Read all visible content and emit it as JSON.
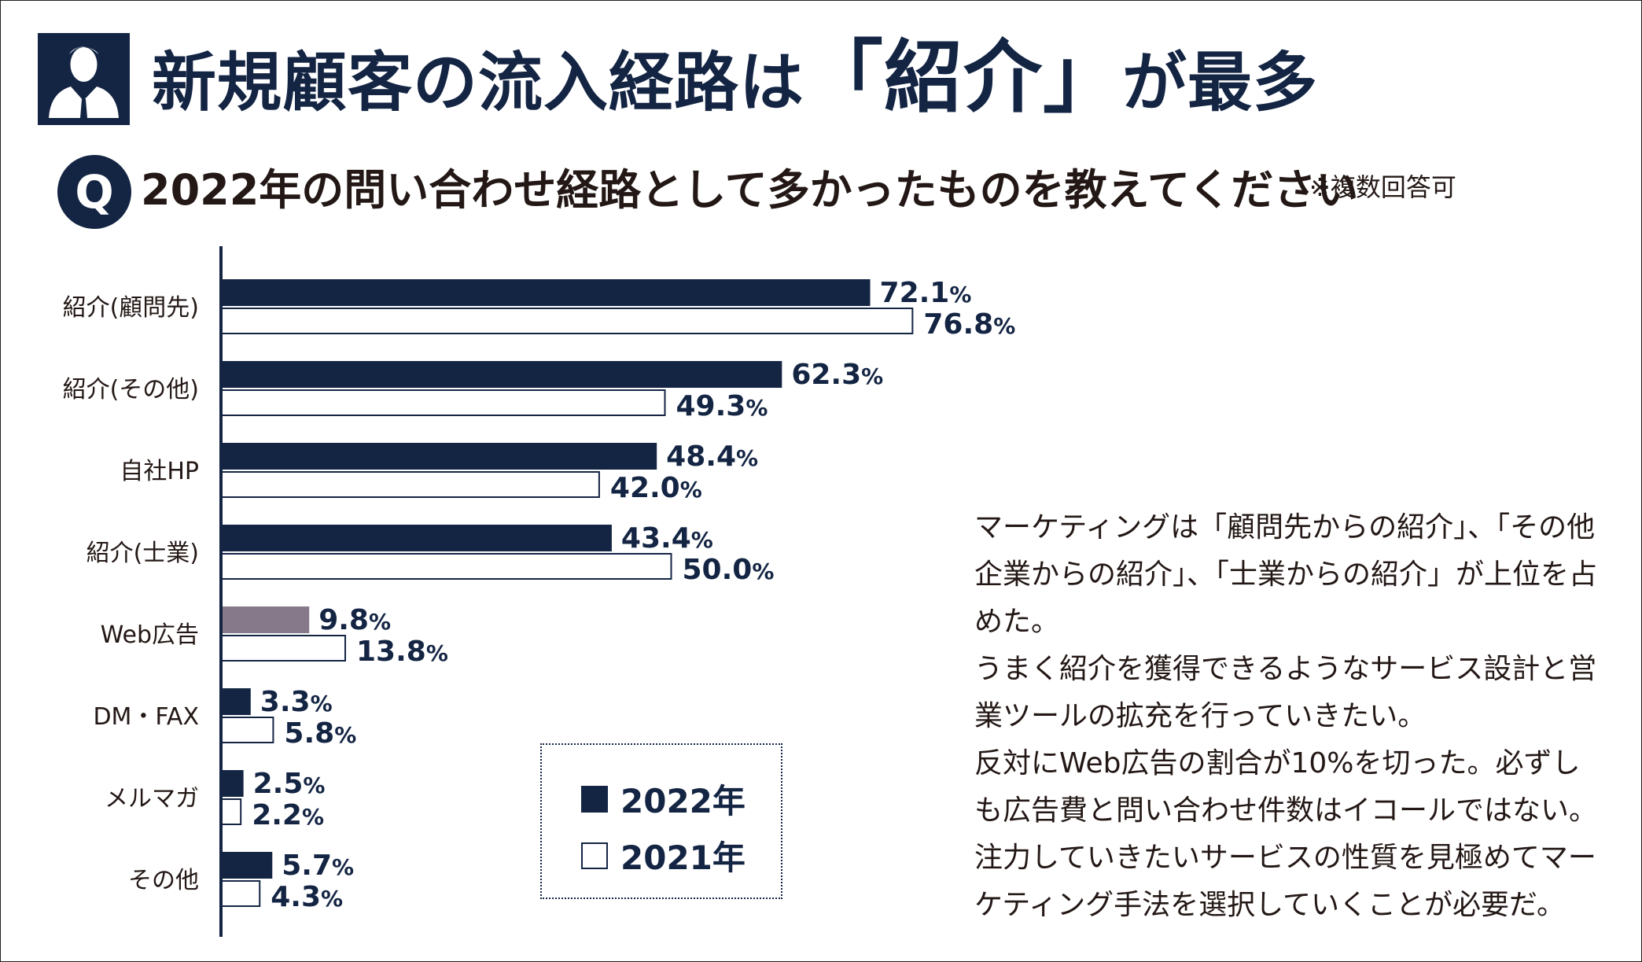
{
  "header": {
    "icon": "businessman-icon",
    "title_part1": "新規顧客の流入経路は",
    "title_part2": "「紹介」",
    "title_part3": "が最多"
  },
  "question": {
    "badge": "Q",
    "text": "2022年の問い合わせ経路として多かったものを教えてください",
    "note": "※複数回答可"
  },
  "legend": {
    "series_2022": "2022年",
    "series_2021": "2021年"
  },
  "colors": {
    "navy": "#142544",
    "highlight": "#86798a",
    "white": "#ffffff"
  },
  "chart_data": {
    "type": "bar",
    "orientation": "horizontal",
    "categories": [
      "紹介(顧問先)",
      "紹介(その他)",
      "自社HP",
      "紹介(士業)",
      "Web広告",
      "DM・FAX",
      "メルマガ",
      "その他"
    ],
    "series": [
      {
        "name": "2022年",
        "values": [
          72.1,
          62.3,
          48.4,
          43.4,
          9.8,
          3.3,
          2.5,
          5.7
        ],
        "highlight_index": 4
      },
      {
        "name": "2021年",
        "values": [
          76.8,
          49.3,
          42.0,
          50.0,
          13.8,
          5.8,
          2.2,
          4.3
        ]
      }
    ],
    "labels": {
      "2022年": [
        "72.1",
        "62.3",
        "48.4",
        "43.4",
        "9.8",
        "3.3",
        "2.5",
        "5.7"
      ],
      "2021年": [
        "76.8",
        "49.3",
        "42.0",
        "50.0",
        "13.8",
        "5.8",
        "2.2",
        "4.3"
      ]
    },
    "unit": "%",
    "xlim": [
      0,
      100
    ],
    "grid": false,
    "legend_position": "bottom-center"
  },
  "commentary": [
    "マーケティングは「顧問先からの紹介」、「その他企業からの紹介」、「士業からの紹介」が上位を占めた。",
    "うまく紹介を獲得できるようなサービス設計と営業ツールの拡充を行っていきたい。",
    "反対にWeb広告の割合が10%を切った。必ずしも広告費と問い合わせ件数はイコールではない。",
    "注力していきたいサービスの性質を見極めてマーケティング手法を選択していくことが必要だ。"
  ]
}
